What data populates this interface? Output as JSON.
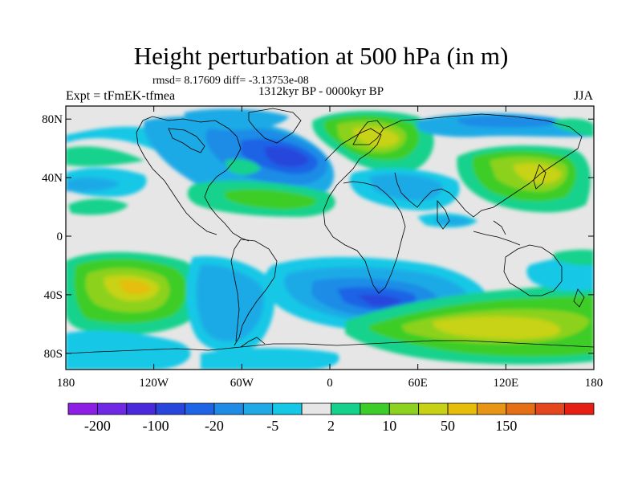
{
  "title": "Height perturbation at 500 hPa (in m)",
  "stats": "rmsd= 8.17609 diff= -3.13753e-08",
  "expt": "Expt = tFmEK-tfmea",
  "period": "1312kyr BP - 0000kyr BP",
  "season": "JJA",
  "map": {
    "lon_ticks": [
      "180",
      "120W",
      "60W",
      "0",
      "60E",
      "120E",
      "180"
    ],
    "lat_ticks": [
      "80N",
      "40N",
      "0",
      "40S",
      "80S"
    ],
    "lat_tick_values": [
      80,
      40,
      0,
      -40,
      -80
    ]
  },
  "colorbar": {
    "colors": [
      "#8c1ee6",
      "#6e28e6",
      "#4a28dc",
      "#2846dc",
      "#1e64e6",
      "#1e8ce6",
      "#1eaae6",
      "#14c8e6",
      "#e6e6e6",
      "#14d28c",
      "#3ccd28",
      "#8cd21e",
      "#c8d214",
      "#e6be0a",
      "#e69614",
      "#e66e14",
      "#e6461e",
      "#e61e14"
    ],
    "labels": [
      "-200",
      "-100",
      "-20",
      "-5",
      "2",
      "10",
      "50",
      "150"
    ]
  }
}
